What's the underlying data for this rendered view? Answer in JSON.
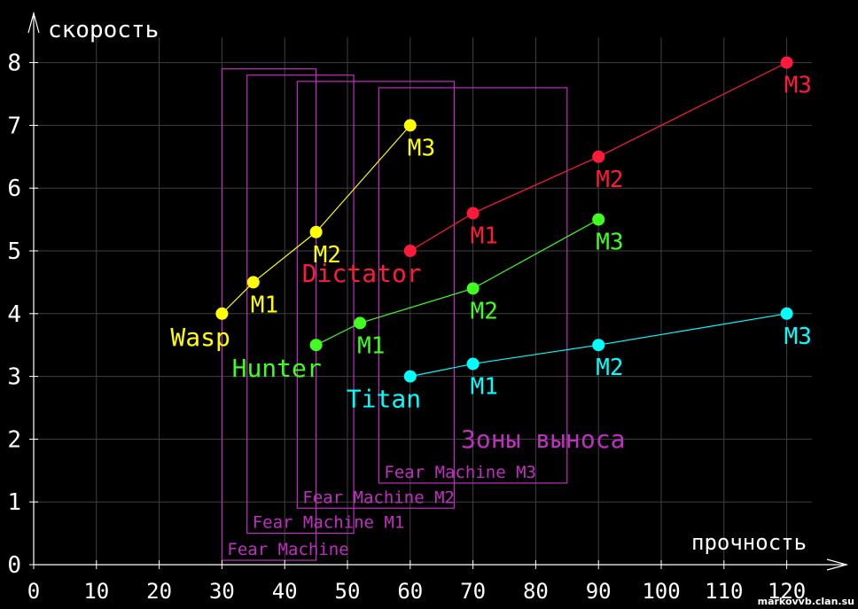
{
  "chart_data": {
    "type": "scatter",
    "xlabel": "прочность",
    "ylabel": "скорость",
    "xlim": [
      0,
      130
    ],
    "ylim": [
      0,
      8.7
    ],
    "x_ticks": [
      0,
      10,
      20,
      30,
      40,
      50,
      60,
      70,
      80,
      90,
      100,
      110,
      120
    ],
    "y_ticks": [
      0,
      1,
      2,
      3,
      4,
      5,
      6,
      7,
      8
    ],
    "grid": true,
    "series": [
      {
        "name": "Wasp",
        "color": "#ffff00",
        "points": [
          {
            "x": 30,
            "y": 4,
            "label": ""
          },
          {
            "x": 35,
            "y": 4.5,
            "label": "M1"
          },
          {
            "x": 45,
            "y": 5.3,
            "label": "M2"
          },
          {
            "x": 60,
            "y": 7,
            "label": "M3"
          }
        ]
      },
      {
        "name": "Dictator",
        "color": "#ff1a3c",
        "points": [
          {
            "x": 60,
            "y": 5,
            "label": ""
          },
          {
            "x": 70,
            "y": 5.6,
            "label": "M1"
          },
          {
            "x": 90,
            "y": 6.5,
            "label": "M2"
          },
          {
            "x": 120,
            "y": 8,
            "label": "M3"
          }
        ]
      },
      {
        "name": "Hunter",
        "color": "#40ff20",
        "points": [
          {
            "x": 45,
            "y": 3.5,
            "label": ""
          },
          {
            "x": 52,
            "y": 3.85,
            "label": "M1"
          },
          {
            "x": 70,
            "y": 4.4,
            "label": "M2"
          },
          {
            "x": 90,
            "y": 5.5,
            "label": "M3"
          }
        ]
      },
      {
        "name": "Titan",
        "color": "#00ffff",
        "points": [
          {
            "x": 60,
            "y": 3,
            "label": ""
          },
          {
            "x": 70,
            "y": 3.2,
            "label": "M1"
          },
          {
            "x": 90,
            "y": 3.5,
            "label": "M2"
          },
          {
            "x": 120,
            "y": 4,
            "label": "M3"
          }
        ]
      }
    ],
    "zones_label": "Зоны выноса",
    "zones_color": "#c030c0",
    "zones": [
      {
        "label": "Fear Machine",
        "x0": 30,
        "x1": 45,
        "y0": 0.07,
        "y1": 7.9
      },
      {
        "label": "Fear Machine M1",
        "x0": 34,
        "x1": 51,
        "y0": 0.5,
        "y1": 7.8
      },
      {
        "label": "Fear Machine M2",
        "x0": 42,
        "x1": 67,
        "y0": 0.9,
        "y1": 7.7
      },
      {
        "label": "Fear Machine M3",
        "x0": 55,
        "x1": 85,
        "y0": 1.3,
        "y1": 7.6
      }
    ],
    "watermark": "markovvb.clan.su"
  }
}
